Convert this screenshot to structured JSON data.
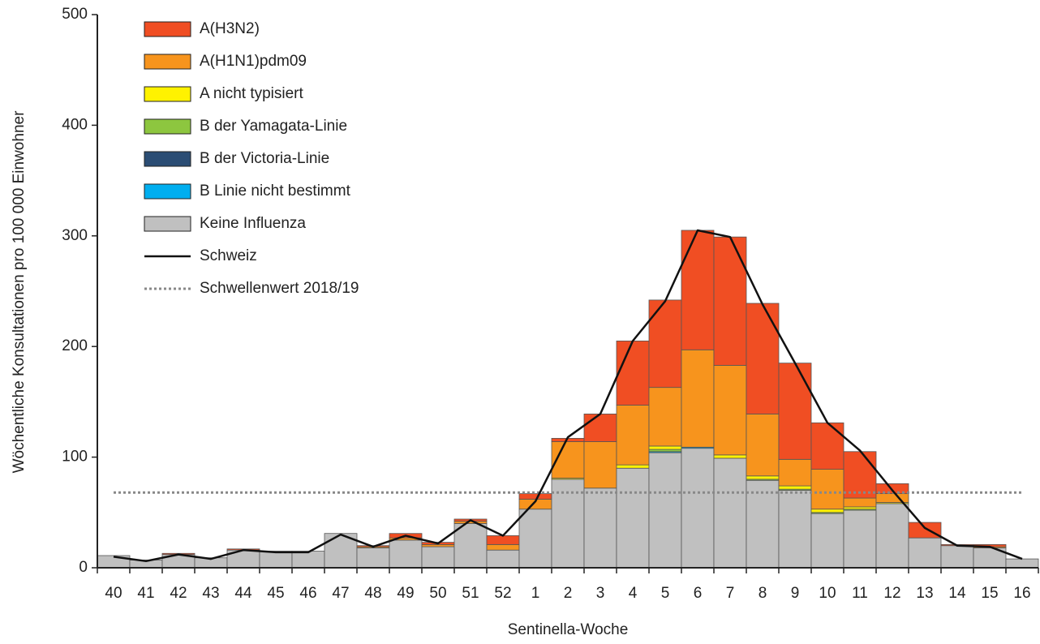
{
  "chart_data": {
    "type": "bar",
    "stacked": true,
    "x_label": "Sentinella-Woche",
    "y_label": "Wöchentliche Konsultationen pro 100 000 Einwohner",
    "categories": [
      "40",
      "41",
      "42",
      "43",
      "44",
      "45",
      "46",
      "47",
      "48",
      "49",
      "50",
      "51",
      "52",
      "1",
      "2",
      "3",
      "4",
      "5",
      "6",
      "7",
      "8",
      "9",
      "10",
      "11",
      "12",
      "13",
      "14",
      "15",
      "16"
    ],
    "series": [
      {
        "name": "Keine Influenza",
        "color": "#c0c0c0",
        "values": [
          11,
          7,
          12,
          9,
          16,
          15,
          15,
          31,
          18,
          25,
          19,
          40,
          16,
          53,
          80,
          72,
          90,
          104,
          108,
          99,
          79,
          70,
          49,
          52,
          58,
          27,
          20,
          18,
          8
        ]
      },
      {
        "name": "B Linie nicht bestimmt",
        "color": "#00aeef",
        "values": [
          0,
          0,
          0,
          0,
          0,
          0,
          0,
          0,
          0,
          0,
          0,
          0,
          0,
          0,
          0,
          0,
          0,
          1,
          1,
          0,
          0,
          0,
          0,
          0,
          0,
          0,
          0,
          0,
          0
        ]
      },
      {
        "name": "B der Victoria-Linie",
        "color": "#2b4d74",
        "values": [
          0,
          0,
          0,
          0,
          0,
          0,
          0,
          0,
          0,
          0,
          0,
          0,
          0,
          0,
          0,
          0,
          0,
          0,
          0,
          0,
          0,
          0,
          0,
          0,
          0,
          0,
          0,
          0,
          0
        ]
      },
      {
        "name": "B der Yamagata-Linie",
        "color": "#8dc63f",
        "values": [
          0,
          0,
          0,
          0,
          0,
          0,
          0,
          0,
          0,
          0,
          0,
          0,
          0,
          0,
          0,
          0,
          0,
          2,
          0,
          0,
          1,
          1,
          1,
          1,
          0,
          0,
          0,
          0,
          0
        ]
      },
      {
        "name": "A nicht typisiert",
        "color": "#fff200",
        "values": [
          0,
          0,
          0,
          0,
          0,
          0,
          0,
          0,
          0,
          0,
          0,
          0,
          0,
          0,
          1,
          0,
          3,
          3,
          0,
          3,
          3,
          3,
          3,
          2,
          1,
          0,
          0,
          0,
          0
        ]
      },
      {
        "name": "A(H1N1)pdm09",
        "color": "#f7941d",
        "values": [
          0,
          0,
          0,
          0,
          0,
          0,
          0,
          0,
          1,
          2,
          2,
          2,
          5,
          9,
          33,
          42,
          54,
          53,
          88,
          81,
          56,
          24,
          36,
          8,
          8,
          0,
          0,
          1,
          0
        ]
      },
      {
        "name": "A(H3N2)",
        "color": "#f04e23",
        "values": [
          0,
          0,
          1,
          0,
          1,
          0,
          0,
          0,
          1,
          4,
          2,
          2,
          8,
          5,
          3,
          25,
          58,
          79,
          108,
          116,
          100,
          87,
          42,
          42,
          9,
          14,
          1,
          2,
          0
        ]
      }
    ],
    "line": {
      "name": "Schweiz",
      "color": "#111111",
      "values": [
        10,
        6,
        12,
        8,
        16,
        14,
        14,
        30,
        19,
        29,
        22,
        43,
        29,
        60,
        118,
        139,
        205,
        241,
        305,
        299,
        238,
        185,
        131,
        106,
        70,
        36,
        20,
        19,
        8
      ]
    },
    "threshold": {
      "name": "Schwellenwert 2018/19",
      "color": "#888888",
      "value": 68
    },
    "ylim": [
      0,
      500
    ],
    "yticks": [
      0,
      100,
      200,
      300,
      400,
      500
    ],
    "grid": false
  }
}
